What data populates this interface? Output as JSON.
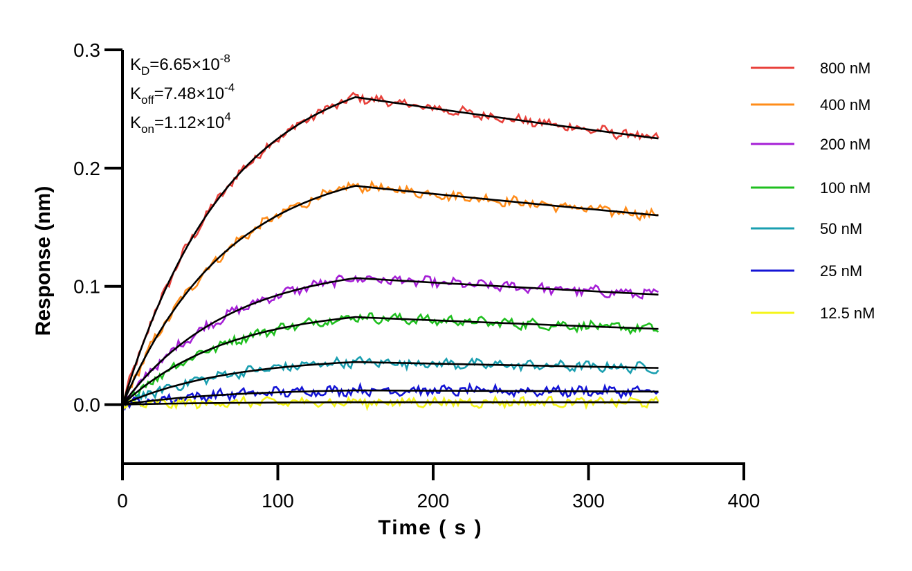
{
  "chart_data": {
    "type": "line",
    "xlabel": "Time ( s )",
    "ylabel": "Response (nm)",
    "xlim": [
      0,
      400
    ],
    "ylim": [
      -0.05,
      0.3
    ],
    "x_ticks": [
      "0",
      "100",
      "200",
      "300",
      "400"
    ],
    "y_ticks": [
      "0.0",
      "0.1",
      "0.2",
      "0.3"
    ],
    "grid": false,
    "legend_position": "right",
    "fit_color": "#000000",
    "association_end_s": 150,
    "end_s": 345,
    "annotations": [
      {
        "main": "K",
        "sub": "D",
        "value": "=6.65×10",
        "exp": "-8"
      },
      {
        "main": "K",
        "sub": "off",
        "value": "=7.48×10",
        "exp": "-4"
      },
      {
        "main": "K",
        "sub": "on",
        "value": "=1.12×10",
        "exp": "4"
      }
    ],
    "series": [
      {
        "name": "800 nM",
        "color": "#e8413b",
        "peak": 0.26,
        "end": 0.225,
        "noise": 0.0035
      },
      {
        "name": "400 nM",
        "color": "#ff8c1a",
        "peak": 0.185,
        "end": 0.16,
        "noise": 0.0035
      },
      {
        "name": "200 nM",
        "color": "#a51fd6",
        "peak": 0.107,
        "end": 0.093,
        "noise": 0.0035
      },
      {
        "name": "100 nM",
        "color": "#1fbf1f",
        "peak": 0.074,
        "end": 0.064,
        "noise": 0.0035
      },
      {
        "name": "50 nM",
        "color": "#1a9fb0",
        "peak": 0.036,
        "end": 0.031,
        "noise": 0.0035
      },
      {
        "name": "25 nM",
        "color": "#1414d6",
        "peak": 0.012,
        "end": 0.011,
        "noise": 0.0035
      },
      {
        "name": "12.5 nM",
        "color": "#f5f51a",
        "peak": 0.002,
        "end": 0.002,
        "noise": 0.0035
      }
    ]
  }
}
